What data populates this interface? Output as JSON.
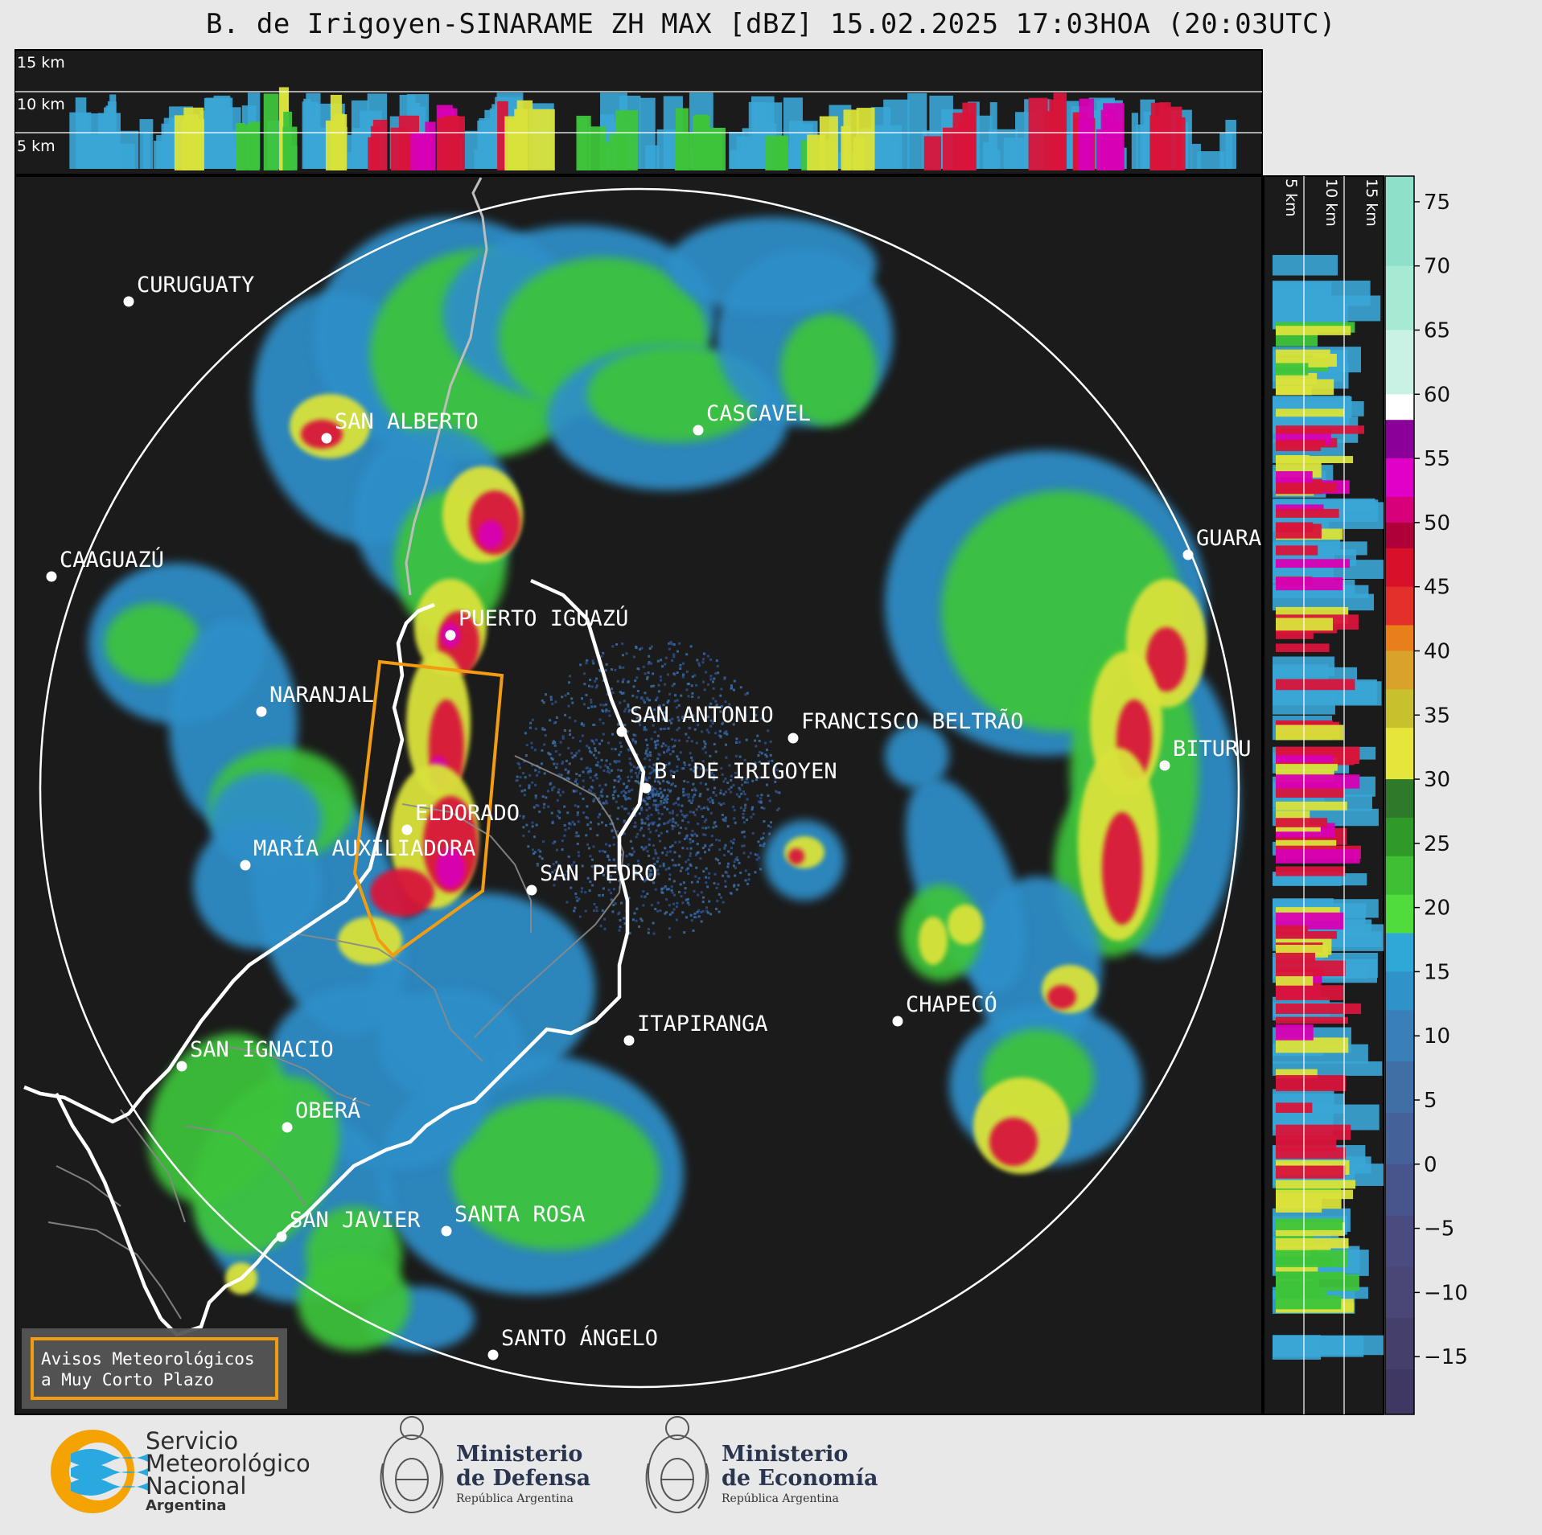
{
  "title": "B. de Irigoyen-SINARAME ZH MAX [dBZ] 15.02.2025 17:03HOA (20:03UTC)",
  "top_profile": {
    "height_labels": [
      "15 km",
      "10 km",
      "5 km"
    ]
  },
  "side_profile": {
    "height_labels": [
      "5 km",
      "10 km",
      "15 km"
    ]
  },
  "colorbar": {
    "unit": "dBZ",
    "ticks": [
      "75",
      "70",
      "65",
      "60",
      "55",
      "50",
      "45",
      "40",
      "35",
      "30",
      "25",
      "20",
      "15",
      "10",
      "5",
      "0",
      "−5",
      "−10",
      "−15"
    ]
  },
  "cities": [
    {
      "name": "CURUGUATY"
    },
    {
      "name": "SAN ALBERTO"
    },
    {
      "name": "CASCAVEL"
    },
    {
      "name": "CAAGUAZÚ"
    },
    {
      "name": "PUERTO IGUAZÚ"
    },
    {
      "name": "GUARA"
    },
    {
      "name": "NARANJAL"
    },
    {
      "name": "SAN ANTONIO"
    },
    {
      "name": "FRANCISCO BELTRÃO"
    },
    {
      "name": "BITURU"
    },
    {
      "name": "B. DE IRIGOYEN"
    },
    {
      "name": "ELDORADO"
    },
    {
      "name": "MARÍA AUXILIADORA"
    },
    {
      "name": "SAN PEDRO"
    },
    {
      "name": "CHAPECÓ"
    },
    {
      "name": "ITAPIRANGA"
    },
    {
      "name": "SAN IGNACIO"
    },
    {
      "name": "OBERÁ"
    },
    {
      "name": "SAN JAVIER"
    },
    {
      "name": "SANTA ROSA"
    },
    {
      "name": "SANTO ÁNGELO"
    }
  ],
  "warning_box": {
    "line1": "Avisos Meteorológicos",
    "line2": "a Muy Corto Plazo",
    "color": "#f39c12"
  },
  "logos": {
    "snm": {
      "line1": "Servicio",
      "line2": "Meteorológico",
      "line3": "Nacional",
      "country": "Argentina",
      "color_orange": "#f5a300",
      "color_blue": "#2aa9e0"
    },
    "defensa": {
      "line1": "Ministerio",
      "line2": "de Defensa",
      "sub": "República Argentina"
    },
    "economia": {
      "line1": "Ministerio",
      "line2": "de Economía",
      "sub": "República Argentina"
    }
  },
  "colors": {
    "map_background": "#1b1b1b",
    "range_ring": "#ffffff",
    "page_background": "#e8e8e8"
  }
}
